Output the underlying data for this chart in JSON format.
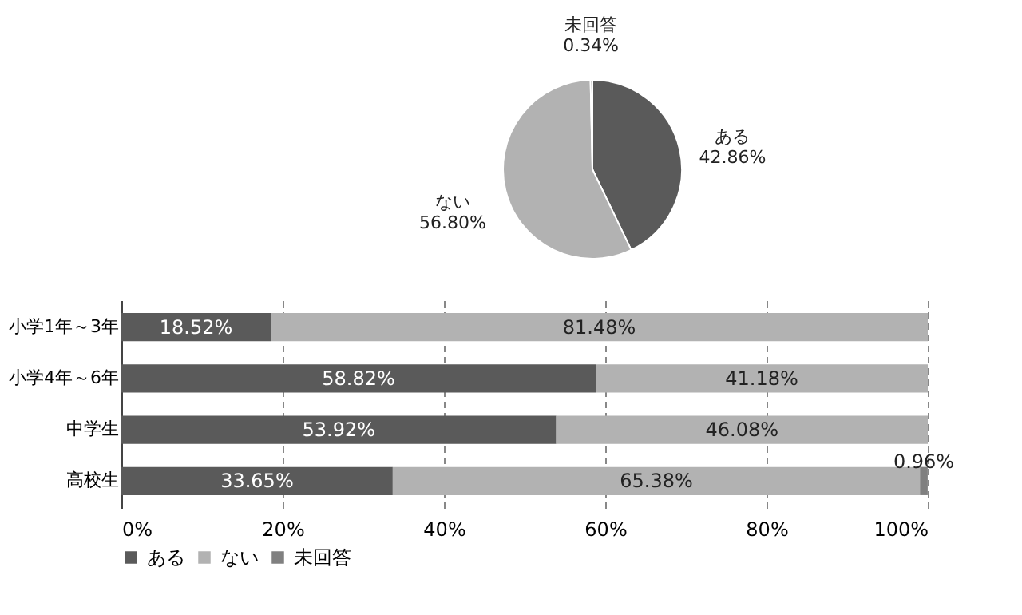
{
  "chart_data": [
    {
      "type": "pie",
      "categories": [
        "ある",
        "ない",
        "未回答"
      ],
      "values": [
        42.86,
        56.8,
        0.34
      ],
      "colors": [
        "#5a5a5a",
        "#b2b2b2",
        "#808080"
      ],
      "value_labels": [
        "42.86%",
        "56.80%",
        "0.34%"
      ]
    },
    {
      "type": "bar",
      "orientation": "horizontal",
      "stacked": true,
      "categories": [
        "小学1年～3年",
        "小学4年～6年",
        "中学生",
        "高校生"
      ],
      "series": [
        {
          "name": "ある",
          "color": "#5a5a5a",
          "values": [
            18.52,
            58.82,
            53.92,
            33.65
          ],
          "value_labels": [
            "18.52%",
            "58.82%",
            "53.92%",
            "33.65%"
          ]
        },
        {
          "name": "ない",
          "color": "#b2b2b2",
          "values": [
            81.48,
            41.18,
            46.08,
            65.38
          ],
          "value_labels": [
            "81.48%",
            "41.18%",
            "46.08%",
            "65.38%"
          ]
        },
        {
          "name": "未回答",
          "color": "#808080",
          "values": [
            0,
            0,
            0,
            0.96
          ],
          "value_labels": [
            null,
            null,
            null,
            "0.96%"
          ]
        }
      ],
      "xlim": [
        0,
        100
      ],
      "xticks": [
        {
          "value": 0,
          "label": "0%"
        },
        {
          "value": 20,
          "label": "20%"
        },
        {
          "value": 40,
          "label": "40%"
        },
        {
          "value": 60,
          "label": "60%"
        },
        {
          "value": 80,
          "label": "80%"
        },
        {
          "value": 100,
          "label": "100%"
        }
      ],
      "grid": "x",
      "legend": "bottom"
    }
  ]
}
